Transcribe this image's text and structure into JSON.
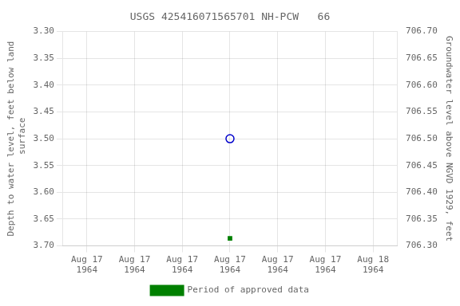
{
  "chart_data": {
    "type": "scatter",
    "title": "USGS 425416071565701 NH-PCW   66",
    "ylabel": "Depth to water level, feet below land\n surface",
    "y2label": "Groundwater level above NGVD 1929, feet",
    "categories": [
      "Aug 17\n1964",
      "Aug 17\n1964",
      "Aug 17\n1964",
      "Aug 17\n1964",
      "Aug 17\n1964",
      "Aug 17\n1964",
      "Aug 18\n1964"
    ],
    "series": [
      {
        "color": "#0000cc",
        "marker": "circle",
        "values": [
          null,
          null,
          null,
          3.5,
          null,
          null,
          null
        ]
      },
      {
        "name": "Period of approved data",
        "color": "#008000",
        "marker": "square",
        "values": [
          null,
          null,
          null,
          3.686,
          null,
          null,
          null
        ]
      }
    ],
    "ylim": [
      3.7,
      3.3
    ],
    "yticks": [
      {
        "value": 3.3,
        "label": "3.30"
      },
      3.35,
      {
        "value": 3.4,
        "label": "3.40"
      },
      3.45,
      {
        "value": 3.5,
        "label": "3.50"
      },
      3.55,
      {
        "value": 3.6,
        "label": "3.60"
      },
      3.65,
      {
        "value": 3.7,
        "label": "3.70"
      }
    ],
    "y2lim": [
      706.3,
      706.7
    ],
    "y2ticks": [
      {
        "value": 706.7,
        "label": "706.70"
      },
      706.65,
      {
        "value": 706.6,
        "label": "706.60"
      },
      706.55,
      {
        "value": 706.5,
        "label": "706.50"
      },
      706.45,
      {
        "value": 706.4,
        "label": "706.40"
      },
      706.35,
      {
        "value": 706.3,
        "label": "706.30"
      }
    ],
    "grid": true,
    "legend": "bottom"
  }
}
